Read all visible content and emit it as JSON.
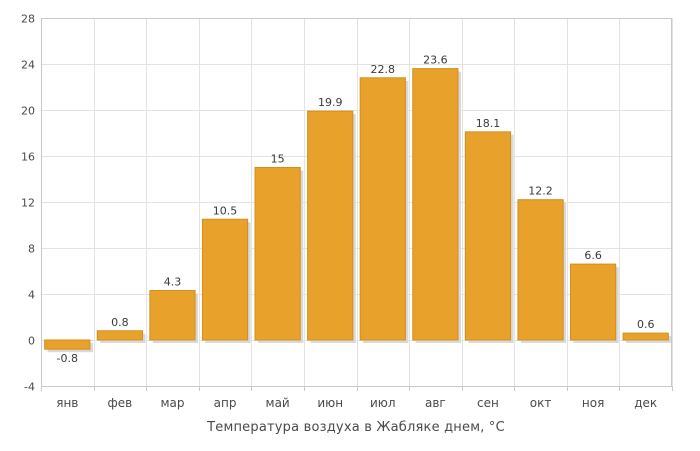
{
  "chart_data": {
    "type": "bar",
    "categories": [
      "янв",
      "фев",
      "мар",
      "апр",
      "май",
      "июн",
      "июл",
      "авг",
      "сен",
      "окт",
      "ноя",
      "дек"
    ],
    "values": [
      -0.8,
      0.8,
      4.3,
      10.5,
      15,
      19.9,
      22.8,
      23.6,
      18.1,
      12.2,
      6.6,
      0.6
    ],
    "value_labels": [
      "-0.8",
      "0.8",
      "4.3",
      "10.5",
      "15",
      "19.9",
      "22.8",
      "23.6",
      "18.1",
      "12.2",
      "6.6",
      "0.6"
    ],
    "title": "",
    "xlabel": "Температура воздуха в Жабляке днем, °C",
    "ylabel": "",
    "ylim": [
      -4,
      28
    ],
    "yticks": [
      -4,
      0,
      4,
      8,
      12,
      16,
      20,
      24,
      28
    ],
    "grid": true,
    "legend": "none",
    "colors": {
      "bar": "#E8A22C",
      "bar_edge": "#D38E1C",
      "bar_shadow": "#D9D9D9",
      "grid": "#E3E3E3",
      "frame": "#C9C9C9",
      "background": "#FFFFFF"
    }
  }
}
